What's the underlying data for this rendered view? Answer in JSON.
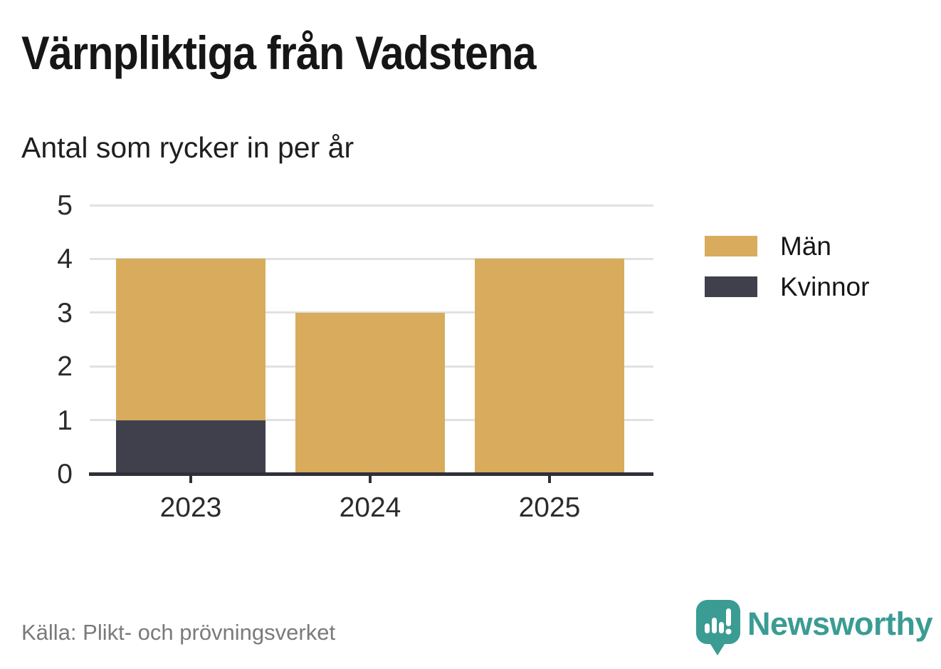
{
  "header": {
    "title": "Värnpliktiga från Vadstena"
  },
  "chart_data": {
    "type": "bar",
    "stacked": true,
    "subtitle": "Antal som rycker in per år",
    "categories": [
      "2023",
      "2024",
      "2025"
    ],
    "series": [
      {
        "name": "Män",
        "values": [
          3,
          3,
          4
        ],
        "color": "#d8ac5c"
      },
      {
        "name": "Kvinnor",
        "values": [
          1,
          0,
          0
        ],
        "color": "#40404d"
      }
    ],
    "stack_order_bottom_to_top": [
      "Kvinnor",
      "Män"
    ],
    "totals": [
      4,
      3,
      4
    ],
    "ylim": [
      0,
      5
    ],
    "yticks": [
      0,
      1,
      2,
      3,
      4,
      5
    ],
    "grid": true,
    "legend_position": "right"
  },
  "footer": {
    "source": "Källa: Plikt- och prövningsverket",
    "brand": "Newsworthy"
  },
  "icons": {
    "brand_logo": "newsworthy-speech-bubble-barchart-icon"
  },
  "colors": {
    "men": "#d8ac5c",
    "women": "#40404d",
    "axis": "#30303a",
    "grid": "#e1e1e1",
    "title_text": "#161616",
    "muted_text": "#7a7a7a",
    "brand_teal": "#3a9c93"
  }
}
